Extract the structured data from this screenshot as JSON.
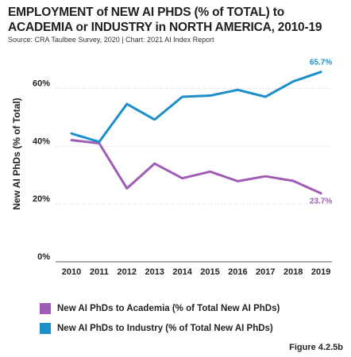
{
  "title": "EMPLOYMENT of NEW AI PHDS (% of TOTAL) to ACADEMIA or INDUSTRY in NORTH AMERICA, 2010-19",
  "source": "Source: CRA Taulbee Survey, 2020 | Chart: 2021 AI Index Report",
  "figure_label": "Figure 4.2.5b",
  "chart_data": {
    "type": "line",
    "x": [
      "2010",
      "2011",
      "2012",
      "2013",
      "2014",
      "2015",
      "2016",
      "2017",
      "2018",
      "2019"
    ],
    "ylabel": "New AI PhDs (% of Total)",
    "ylim": [
      0,
      70
    ],
    "yticks": [
      {
        "value": 0,
        "label": "0%"
      },
      {
        "value": 20,
        "label": "20%"
      },
      {
        "value": 40,
        "label": "40%"
      },
      {
        "value": 60,
        "label": "60%"
      }
    ],
    "grid": "horizontal",
    "legend_position": "bottom",
    "series": [
      {
        "name": "New AI PhDs to Academia (% of Total New AI PhDs)",
        "color": "#a05cb4",
        "values": [
          42.1,
          41.0,
          25.4,
          34.0,
          28.9,
          31.2,
          27.9,
          29.6,
          28.0,
          23.7
        ],
        "end_label": "23.7%"
      },
      {
        "name": "New AI PhDs to Industry (% of Total New AI PhDs)",
        "color": "#1a8fc9",
        "values": [
          44.4,
          41.5,
          54.6,
          49.2,
          57.1,
          57.5,
          59.5,
          57.1,
          62.4,
          65.7
        ],
        "end_label": "65.7%"
      }
    ]
  }
}
